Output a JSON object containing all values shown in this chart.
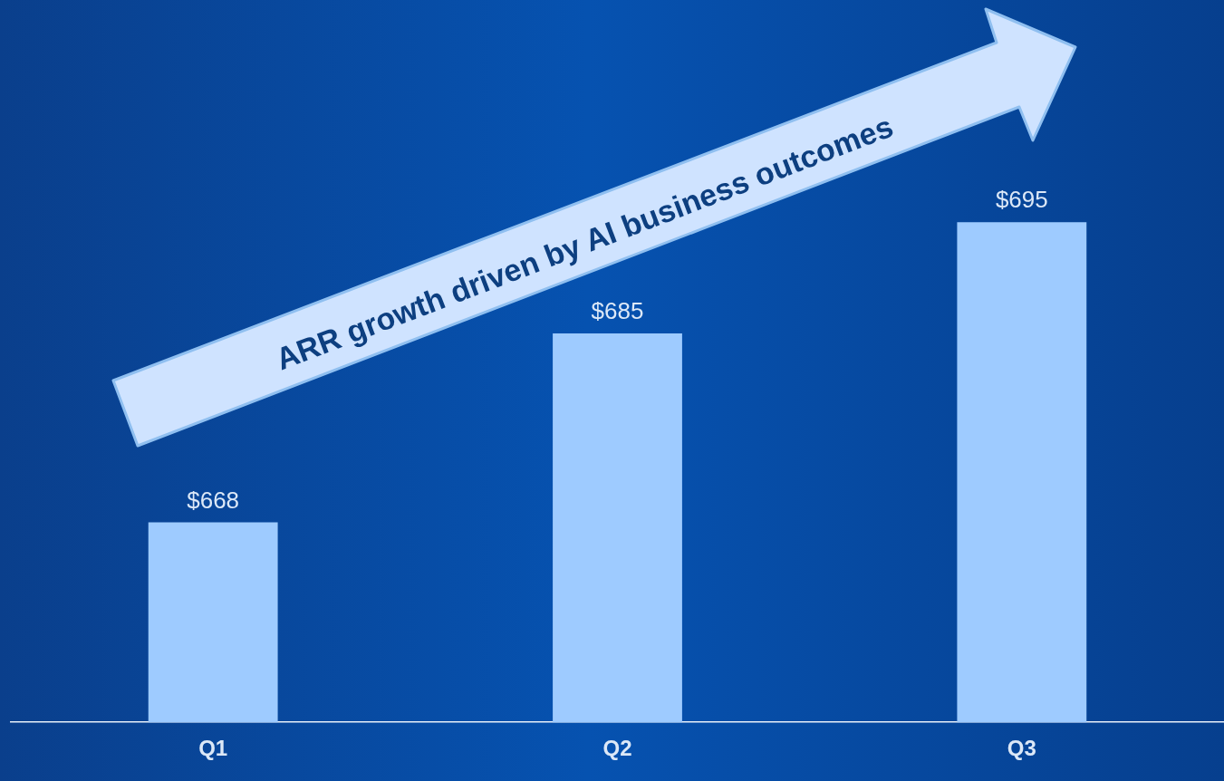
{
  "chart_data": {
    "type": "bar",
    "categories": [
      "Q1",
      "Q2",
      "Q3"
    ],
    "values": [
      668,
      685,
      695
    ],
    "value_labels": [
      "$668",
      "$685",
      "$695"
    ],
    "color": "#9ecbff",
    "ylim": [
      650,
      715
    ],
    "tick_labels": "x",
    "grid": false,
    "legend": false,
    "annotations": [
      "ARR growth driven by AI business outcomes"
    ]
  }
}
